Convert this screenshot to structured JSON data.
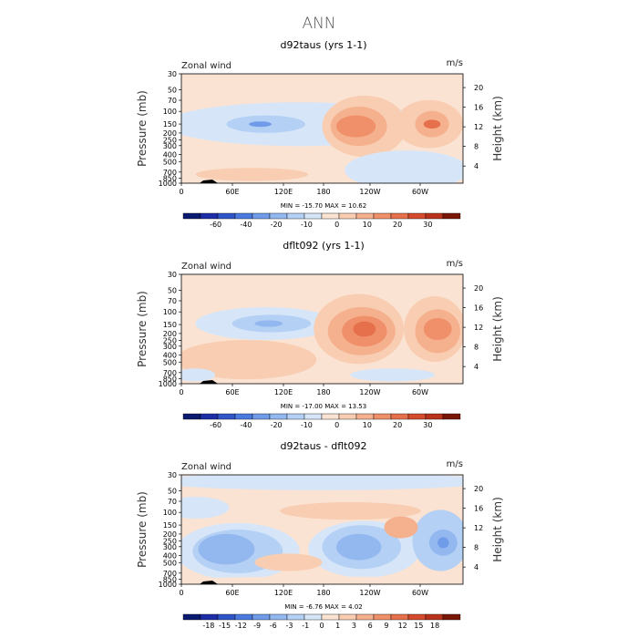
{
  "figure": {
    "title": "ANN",
    "colors": {
      "neg": [
        "#0a1a6e",
        "#1e2ea8",
        "#2f55c8",
        "#4a7ae0",
        "#6f9be8",
        "#93b8f0",
        "#b5d0f5",
        "#d6e6f8"
      ],
      "pos": [
        "#fbe3d3",
        "#f8cdb2",
        "#f5b08e",
        "#f0906a",
        "#e6704b",
        "#d44c2d",
        "#b8321c",
        "#7a1608"
      ],
      "ground": "#000000",
      "frame": "#000000"
    }
  },
  "chart_data": [
    {
      "type": "contour",
      "title": "d92taus (yrs 1-1)",
      "variable_label": "Zonal wind",
      "units": "m/s",
      "ylabel": "Pressure (mb)",
      "ylabel_right": "Height (km)",
      "x_ticks": [
        "0",
        "60E",
        "120E",
        "180",
        "120W",
        "60W"
      ],
      "y_ticks": [
        "30",
        "50",
        "70",
        "100",
        "150",
        "200",
        "250",
        "300",
        "400",
        "500",
        "700",
        "850",
        "1000"
      ],
      "y2_ticks": [
        "20",
        "16",
        "12",
        "8",
        "4"
      ],
      "stats": "MIN = -15.70   MAX =  10.62",
      "min": -15.7,
      "max": 10.62,
      "colorbar_levels": [
        "-60",
        "-40",
        "-20",
        "-10",
        "0",
        "10",
        "20",
        "30"
      ]
    },
    {
      "type": "contour",
      "title": "dflt092 (yrs 1-1)",
      "variable_label": "Zonal wind",
      "units": "m/s",
      "ylabel": "Pressure (mb)",
      "ylabel_right": "Height (km)",
      "x_ticks": [
        "0",
        "60E",
        "120E",
        "180",
        "120W",
        "60W"
      ],
      "y_ticks": [
        "30",
        "50",
        "70",
        "100",
        "150",
        "200",
        "250",
        "300",
        "400",
        "500",
        "700",
        "850",
        "1000"
      ],
      "y2_ticks": [
        "20",
        "16",
        "12",
        "8",
        "4"
      ],
      "stats": "MIN = -17.00   MAX =  13.53",
      "min": -17.0,
      "max": 13.53,
      "colorbar_levels": [
        "-60",
        "-40",
        "-20",
        "-10",
        "0",
        "10",
        "20",
        "30"
      ]
    },
    {
      "type": "contour",
      "title": "d92taus - dflt092",
      "variable_label": "Zonal wind",
      "units": "m/s",
      "ylabel": "Pressure (mb)",
      "ylabel_right": "Height (km)",
      "x_ticks": [
        "0",
        "60E",
        "120E",
        "180",
        "120W",
        "60W"
      ],
      "y_ticks": [
        "30",
        "50",
        "70",
        "100",
        "150",
        "200",
        "250",
        "300",
        "400",
        "500",
        "700",
        "850",
        "1000"
      ],
      "y2_ticks": [
        "20",
        "16",
        "12",
        "8",
        "4"
      ],
      "stats": "MIN =  -6.76   MAX =    4.02",
      "min": -6.76,
      "max": 4.02,
      "colorbar_levels": [
        "-18",
        "-15",
        "-12",
        "-9",
        "-6",
        "-3",
        "-1",
        "0",
        "1",
        "3",
        "6",
        "9",
        "12",
        "15",
        "18"
      ]
    }
  ]
}
